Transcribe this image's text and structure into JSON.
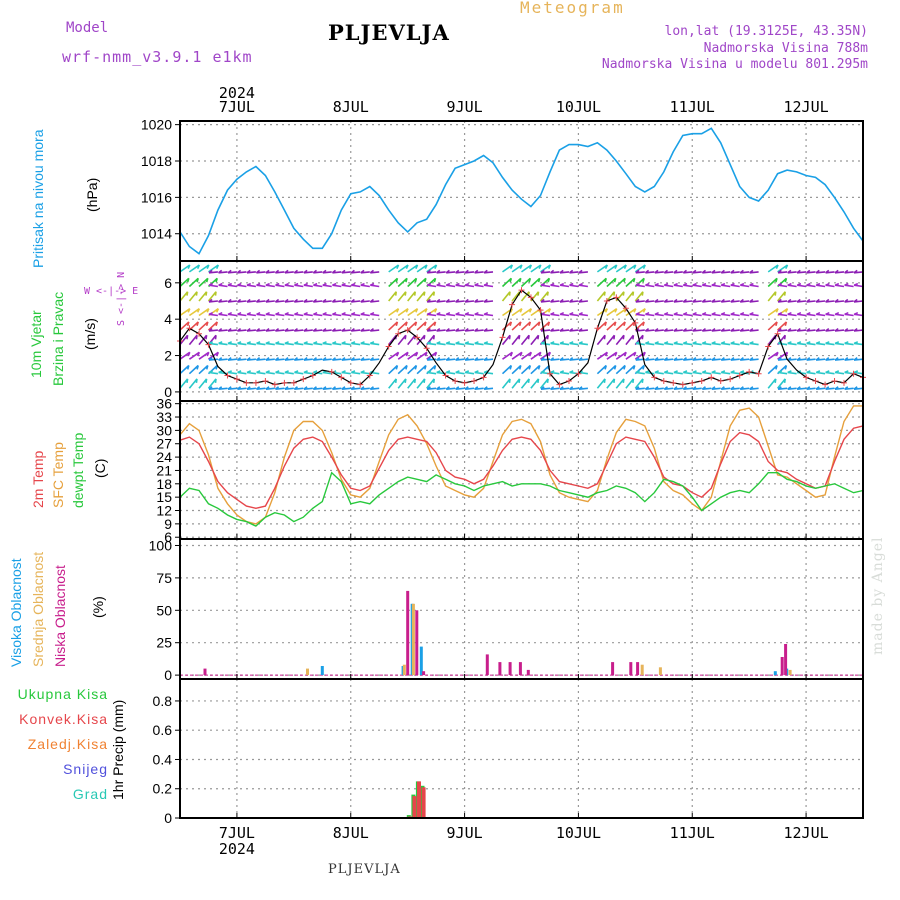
{
  "header": {
    "title": "PLJEVLJA",
    "model_label": "Model",
    "model_name": "wrf-nmm_v3.9.1 e1km",
    "meteogram": "Meteogram",
    "lonlat": "lon,lat (19.3125E, 43.35N)",
    "elevation": "Nadmorska Visina 788m",
    "model_elevation": "Nadmorska Visina u modelu 801.295m"
  },
  "footer": "PLJEVLJA",
  "credit": "made by Angel",
  "colors": {
    "pressure": "#1aa0e6",
    "temp2m": "#e6464b",
    "sfc_temp": "#e6a03c",
    "dewpoint": "#28c83c",
    "high_cloud": "#1aa0e6",
    "mid_cloud": "#e6b45a",
    "low_cloud": "#c81e8c",
    "total_precip": "#28c83c",
    "conv_precip": "#e6464b",
    "frozen_precip": "#f08232",
    "snow": "#5050dc",
    "graupel": "#28c8b4",
    "wind_label": "#28c83c",
    "wind_compass": "#b43cc8"
  },
  "labels": {
    "pressure": "Pritisak na nivou mora",
    "pressure_unit": "(hPa)",
    "wind_line1": "10m Vjetar",
    "wind_line2": "Brzina i Pravac",
    "wind_unit": "(m/s)",
    "compass": "W <-|-> E",
    "compass_ns": "S <-|-> N",
    "temp2m": "2m Temp",
    "sfc_temp": "SFC Temp",
    "dewpoint": "dewpt Temp",
    "temp_unit": "(C)",
    "high_cloud": "Visoka Oblacnost",
    "mid_cloud": "Srednja Oblacnost",
    "low_cloud": "Niska Oblacnost",
    "cloud_unit": "(%)",
    "total_precip": "Ukupna Kisa",
    "conv_precip": "Konvek.Kisa",
    "frozen_precip": "Zaledj.Kisa",
    "snow": "Snijeg",
    "graupel": "Grad",
    "precip_unit": "1hr Precip (mm)"
  },
  "chart_data": [
    {
      "type": "line",
      "title": "",
      "ylabel": "(hPa)",
      "series_label": "Pritisak na nivou mora",
      "xlabel": "",
      "x_tick_labels": [
        "7JUL",
        "8JUL",
        "9JUL",
        "10JUL",
        "11JUL",
        "12JUL"
      ],
      "year": "2024",
      "x_range_days": [
        6.5,
        12.5
      ],
      "ylim": [
        1012.5,
        1020.2
      ],
      "y_ticks": [
        1014,
        1016,
        1018,
        1020
      ],
      "grid": true,
      "series": [
        {
          "name": "Pritisak na nivou mora",
          "x": [
            6.5,
            6.583,
            6.667,
            6.75,
            6.833,
            6.917,
            7.0,
            7.083,
            7.167,
            7.25,
            7.333,
            7.417,
            7.5,
            7.583,
            7.667,
            7.75,
            7.833,
            7.917,
            8.0,
            8.083,
            8.167,
            8.25,
            8.333,
            8.417,
            8.5,
            8.583,
            8.667,
            8.75,
            8.833,
            8.917,
            9.0,
            9.083,
            9.167,
            9.25,
            9.333,
            9.417,
            9.5,
            9.583,
            9.667,
            9.75,
            9.833,
            9.917,
            10.0,
            10.083,
            10.167,
            10.25,
            10.333,
            10.417,
            10.5,
            10.583,
            10.667,
            10.75,
            10.833,
            10.917,
            11.0,
            11.083,
            11.167,
            11.25,
            11.333,
            11.417,
            11.5,
            11.583,
            11.667,
            11.75,
            11.833,
            11.917,
            12.0,
            12.083,
            12.167,
            12.25,
            12.333,
            12.417,
            12.5
          ],
          "values": [
            1014.1,
            1013.3,
            1012.9,
            1013.9,
            1015.3,
            1016.4,
            1017.0,
            1017.4,
            1017.7,
            1017.2,
            1016.3,
            1015.3,
            1014.3,
            1013.7,
            1013.2,
            1013.2,
            1014.0,
            1015.3,
            1016.2,
            1016.3,
            1016.6,
            1016.1,
            1015.3,
            1014.6,
            1014.1,
            1014.6,
            1014.8,
            1015.6,
            1016.7,
            1017.6,
            1017.8,
            1018.0,
            1018.3,
            1017.9,
            1017.1,
            1016.4,
            1015.9,
            1015.5,
            1016.1,
            1017.4,
            1018.6,
            1018.9,
            1018.9,
            1018.8,
            1019.0,
            1018.6,
            1018.0,
            1017.3,
            1016.6,
            1016.3,
            1016.6,
            1017.4,
            1018.5,
            1019.4,
            1019.5,
            1019.5,
            1019.8,
            1019.0,
            1017.8,
            1016.6,
            1016.0,
            1015.8,
            1016.4,
            1017.3,
            1017.5,
            1017.4,
            1017.2,
            1017.1,
            1016.7,
            1016.0,
            1015.2,
            1014.3,
            1013.6
          ]
        }
      ]
    },
    {
      "type": "line",
      "title": "",
      "ylabel": "(m/s)",
      "series_label": "10m Vjetar Brzina i Pravac",
      "ylim": [
        -0.5,
        7.2
      ],
      "y_ticks": [
        0,
        2,
        4,
        6
      ],
      "grid": true,
      "series": [
        {
          "name": "10m Vjetar",
          "x": [
            6.5,
            6.583,
            6.667,
            6.75,
            6.833,
            6.917,
            7.0,
            7.083,
            7.167,
            7.25,
            7.333,
            7.417,
            7.5,
            7.583,
            7.667,
            7.75,
            7.833,
            7.917,
            8.0,
            8.083,
            8.167,
            8.25,
            8.333,
            8.417,
            8.5,
            8.583,
            8.667,
            8.75,
            8.833,
            8.917,
            9.0,
            9.083,
            9.167,
            9.25,
            9.333,
            9.417,
            9.5,
            9.583,
            9.667,
            9.75,
            9.833,
            9.917,
            10.0,
            10.083,
            10.167,
            10.25,
            10.333,
            10.417,
            10.5,
            10.583,
            10.667,
            10.75,
            10.833,
            10.917,
            11.0,
            11.083,
            11.167,
            11.25,
            11.333,
            11.417,
            11.5,
            11.583,
            11.667,
            11.75,
            11.833,
            11.917,
            12.0,
            12.083,
            12.167,
            12.25,
            12.333,
            12.417,
            12.5
          ],
          "values": [
            2.8,
            3.5,
            3.2,
            2.6,
            1.4,
            0.9,
            0.7,
            0.5,
            0.5,
            0.6,
            0.4,
            0.5,
            0.5,
            0.7,
            0.9,
            1.2,
            1.1,
            0.8,
            0.5,
            0.4,
            0.9,
            1.6,
            2.5,
            3.2,
            3.4,
            3.0,
            2.4,
            1.6,
            0.9,
            0.6,
            0.5,
            0.6,
            0.8,
            1.5,
            3.0,
            4.8,
            5.6,
            5.2,
            4.5,
            1.0,
            0.4,
            0.6,
            1.0,
            1.6,
            3.5,
            5.0,
            5.2,
            4.6,
            3.8,
            1.5,
            0.8,
            0.6,
            0.5,
            0.4,
            0.5,
            0.6,
            0.8,
            0.6,
            0.7,
            0.9,
            1.1,
            1.0,
            2.5,
            3.2,
            1.8,
            1.2,
            0.8,
            0.6,
            0.4,
            0.6,
            0.5,
            1.0,
            0.8
          ]
        }
      ],
      "wind_direction_note": "W <-|-> E"
    },
    {
      "type": "line",
      "title": "",
      "ylabel": "(C)",
      "ylim": [
        5.6,
        36.6
      ],
      "y_ticks": [
        6,
        9,
        12,
        15,
        18,
        21,
        24,
        27,
        30,
        33,
        36
      ],
      "grid": true,
      "series": [
        {
          "name": "2m Temp",
          "x": [
            6.5,
            6.583,
            6.667,
            6.75,
            6.833,
            6.917,
            7.0,
            7.083,
            7.167,
            7.25,
            7.333,
            7.417,
            7.5,
            7.583,
            7.667,
            7.75,
            7.833,
            7.917,
            8.0,
            8.083,
            8.167,
            8.25,
            8.333,
            8.417,
            8.5,
            8.583,
            8.667,
            8.75,
            8.833,
            8.917,
            9.0,
            9.083,
            9.167,
            9.25,
            9.333,
            9.417,
            9.5,
            9.583,
            9.667,
            9.75,
            9.833,
            9.917,
            10.0,
            10.083,
            10.167,
            10.25,
            10.333,
            10.417,
            10.5,
            10.583,
            10.667,
            10.75,
            10.833,
            10.917,
            11.0,
            11.083,
            11.167,
            11.25,
            11.333,
            11.417,
            11.5,
            11.583,
            11.667,
            11.75,
            11.833,
            11.917,
            12.0,
            12.083,
            12.167,
            12.25,
            12.333,
            12.417,
            12.5
          ],
          "values": [
            27.8,
            28.5,
            27.0,
            23.0,
            18.5,
            16.0,
            14.5,
            13.0,
            12.5,
            13.0,
            17.0,
            22.0,
            26.0,
            28.0,
            28.5,
            27.5,
            24.0,
            20.0,
            17.0,
            16.5,
            17.5,
            21.5,
            25.5,
            28.0,
            28.5,
            28.0,
            27.5,
            25.0,
            21.0,
            19.5,
            19.0,
            18.0,
            19.0,
            22.0,
            25.5,
            28.0,
            28.5,
            28.0,
            25.5,
            21.0,
            18.5,
            18.0,
            17.5,
            17.0,
            18.0,
            22.5,
            27.0,
            28.5,
            28.0,
            27.5,
            24.0,
            19.5,
            18.0,
            17.5,
            16.0,
            15.0,
            17.0,
            22.5,
            27.5,
            29.5,
            29.0,
            27.5,
            23.0,
            21.0,
            20.5,
            19.0,
            18.0,
            17.0,
            17.5,
            23.0,
            28.0,
            30.5,
            31.0
          ]
        },
        {
          "name": "SFC Temp",
          "x": [
            6.5,
            6.583,
            6.667,
            6.75,
            6.833,
            6.917,
            7.0,
            7.083,
            7.167,
            7.25,
            7.333,
            7.417,
            7.5,
            7.583,
            7.667,
            7.75,
            7.833,
            7.917,
            8.0,
            8.083,
            8.167,
            8.25,
            8.333,
            8.417,
            8.5,
            8.583,
            8.667,
            8.75,
            8.833,
            8.917,
            9.0,
            9.083,
            9.167,
            9.25,
            9.333,
            9.417,
            9.5,
            9.583,
            9.667,
            9.75,
            9.833,
            9.917,
            10.0,
            10.083,
            10.167,
            10.25,
            10.333,
            10.417,
            10.5,
            10.583,
            10.667,
            10.75,
            10.833,
            10.917,
            11.0,
            11.083,
            11.167,
            11.25,
            11.333,
            11.417,
            11.5,
            11.583,
            11.667,
            11.75,
            11.833,
            11.917,
            12.0,
            12.083,
            12.167,
            12.25,
            12.333,
            12.417,
            12.5
          ],
          "values": [
            29.0,
            31.5,
            30.0,
            24.5,
            17.0,
            13.5,
            11.0,
            9.5,
            9.0,
            10.5,
            16.0,
            24.0,
            30.0,
            32.0,
            32.0,
            30.0,
            25.0,
            19.0,
            15.5,
            15.0,
            17.0,
            23.0,
            29.0,
            32.5,
            33.5,
            31.0,
            27.0,
            22.0,
            17.5,
            16.5,
            15.5,
            15.0,
            17.0,
            23.0,
            29.0,
            32.0,
            32.5,
            31.5,
            27.5,
            20.0,
            16.0,
            15.0,
            14.5,
            14.0,
            16.5,
            23.5,
            29.5,
            32.5,
            32.0,
            31.0,
            26.0,
            18.5,
            16.5,
            15.5,
            13.5,
            12.0,
            15.0,
            23.0,
            31.0,
            34.5,
            35.0,
            33.0,
            26.5,
            20.0,
            19.5,
            18.0,
            16.5,
            15.0,
            15.5,
            24.0,
            32.0,
            35.5,
            35.5
          ]
        },
        {
          "name": "dewpt Temp",
          "x": [
            6.5,
            6.583,
            6.667,
            6.75,
            6.833,
            6.917,
            7.0,
            7.083,
            7.167,
            7.25,
            7.333,
            7.417,
            7.5,
            7.583,
            7.667,
            7.75,
            7.833,
            7.917,
            8.0,
            8.083,
            8.167,
            8.25,
            8.333,
            8.417,
            8.5,
            8.583,
            8.667,
            8.75,
            8.833,
            8.917,
            9.0,
            9.083,
            9.167,
            9.25,
            9.333,
            9.417,
            9.5,
            9.583,
            9.667,
            9.75,
            9.833,
            9.917,
            10.0,
            10.083,
            10.167,
            10.25,
            10.333,
            10.417,
            10.5,
            10.583,
            10.667,
            10.75,
            10.833,
            10.917,
            11.0,
            11.083,
            11.167,
            11.25,
            11.333,
            11.417,
            11.5,
            11.583,
            11.667,
            11.75,
            11.833,
            11.917,
            12.0,
            12.083,
            12.167,
            12.25,
            12.333,
            12.417,
            12.5
          ],
          "values": [
            15.0,
            17.0,
            16.5,
            13.5,
            12.5,
            11.0,
            10.0,
            9.5,
            8.5,
            10.5,
            11.5,
            11.0,
            9.5,
            10.5,
            12.5,
            14.0,
            20.5,
            18.5,
            13.5,
            14.0,
            13.5,
            15.5,
            17.0,
            18.5,
            19.5,
            19.0,
            18.5,
            20.0,
            19.0,
            18.0,
            17.5,
            16.5,
            17.5,
            18.0,
            18.5,
            17.5,
            18.0,
            18.0,
            18.0,
            17.5,
            16.5,
            16.0,
            15.5,
            15.0,
            16.0,
            16.5,
            17.5,
            17.0,
            16.0,
            14.0,
            16.0,
            19.0,
            18.5,
            17.5,
            15.0,
            12.0,
            13.5,
            15.0,
            16.0,
            16.5,
            16.0,
            18.0,
            20.5,
            20.5,
            19.0,
            18.5,
            17.5,
            17.0,
            17.5,
            18.0,
            17.0,
            16.0,
            16.5
          ]
        }
      ]
    },
    {
      "type": "bar",
      "title": "",
      "ylabel": "(%)",
      "ylim": [
        -3,
        105
      ],
      "y_ticks": [
        0,
        25,
        50,
        75,
        100
      ],
      "grid": true,
      "series": [
        {
          "name": "Visoka Oblacnost",
          "x": [
            7.75,
            8.46,
            8.54,
            8.62,
            11.73,
            11.83
          ],
          "values": [
            7,
            7,
            55,
            22,
            3,
            5
          ]
        },
        {
          "name": "Srednja Oblacnost",
          "x": [
            7.62,
            8.47,
            8.55,
            10.56,
            10.72,
            11.86
          ],
          "values": [
            5,
            8,
            55,
            8,
            6,
            4
          ]
        },
        {
          "name": "Niska Oblacnost",
          "x": [
            6.72,
            8.5,
            8.58,
            8.64,
            9.2,
            9.31,
            9.4,
            9.49,
            9.56,
            10.3,
            10.46,
            10.52,
            11.79,
            11.82
          ],
          "values": [
            5,
            65,
            50,
            3,
            16,
            10,
            10,
            10,
            4,
            10,
            10,
            10,
            14,
            24
          ]
        }
      ]
    },
    {
      "type": "bar",
      "title": "",
      "ylabel": "1hr Precip (mm)",
      "ylim": [
        0,
        0.95
      ],
      "y_ticks": [
        0,
        0.2,
        0.4,
        0.6,
        0.8
      ],
      "grid": true,
      "x_tick_labels": [
        "7JUL",
        "8JUL",
        "9JUL",
        "10JUL",
        "11JUL",
        "12JUL"
      ],
      "year": "2024",
      "series": [
        {
          "name": "Ukupna Kisa",
          "x": [
            8.51,
            8.55,
            8.59,
            8.63
          ],
          "values": [
            0.02,
            0.16,
            0.25,
            0.22
          ]
        },
        {
          "name": "Konvek.Kisa",
          "x": [
            8.52,
            8.56,
            8.6,
            8.64
          ],
          "values": [
            0.01,
            0.15,
            0.25,
            0.21
          ]
        },
        {
          "name": "Zaledj.Kisa",
          "x": [],
          "values": []
        },
        {
          "name": "Snijeg",
          "x": [],
          "values": []
        },
        {
          "name": "Grad",
          "x": [],
          "values": []
        }
      ]
    }
  ]
}
